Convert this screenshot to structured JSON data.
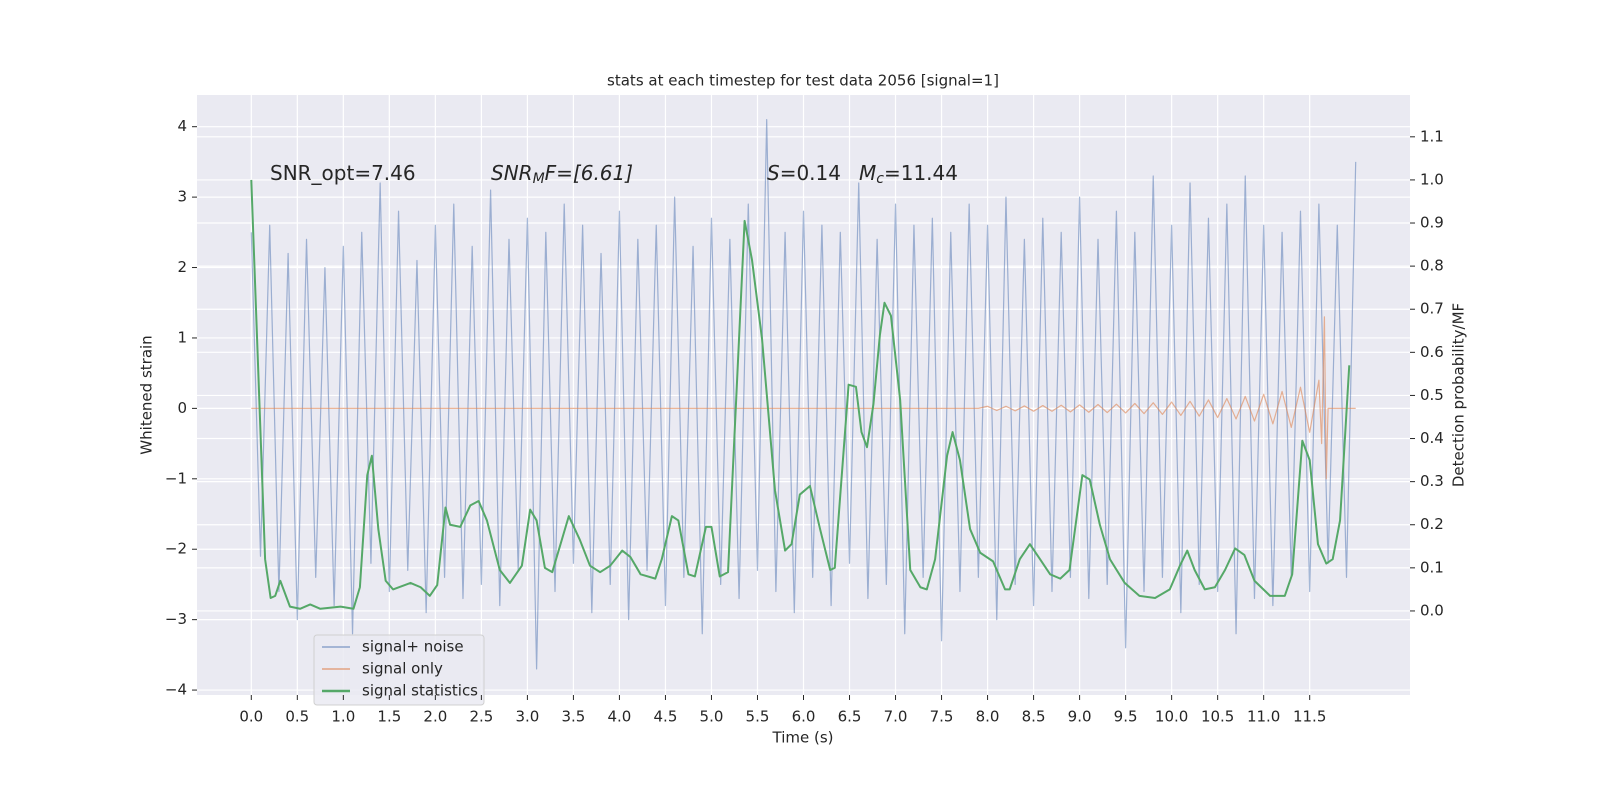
{
  "chart_data": {
    "type": "line",
    "title": "stats at each timestep for test data 2056 [signal=1]",
    "x_label": "Time (s)",
    "y_label": "Whitened strain",
    "y2_label": "Detection probability/MF",
    "annotations": [
      [
        "SNR_opt=7.46"
      ],
      [
        "SNR",
        "M",
        "F=[6.61]"
      ],
      [
        "S",
        "=0.14",
        "M",
        "c",
        "=11.44"
      ]
    ],
    "grid": true,
    "legend": "lower left",
    "xlim": [
      -0.59,
      12.59
    ],
    "ylim": [
      -4.07,
      4.45
    ],
    "y2lim": [
      -0.195,
      1.197
    ],
    "xticks": [
      {
        "value": 0,
        "label": "0.0"
      },
      0.5,
      {
        "value": 1,
        "label": "1.0"
      },
      1.5,
      {
        "value": 2,
        "label": "2.0"
      },
      2.5,
      {
        "value": 3,
        "label": "3.0"
      },
      3.5,
      {
        "value": 4,
        "label": "4.0"
      },
      4.5,
      {
        "value": 5,
        "label": "5.0"
      },
      5.5,
      {
        "value": 6,
        "label": "6.0"
      },
      6.5,
      {
        "value": 7,
        "label": "7.0"
      },
      7.5,
      {
        "value": 8,
        "label": "8.0"
      },
      8.5,
      {
        "value": 9,
        "label": "9.0"
      },
      9.5,
      {
        "value": 10,
        "label": "10.0"
      },
      10.5,
      {
        "value": 11,
        "label": "11.0"
      },
      11.5
    ],
    "yticks": [
      {
        "value": -4,
        "label": "−4"
      },
      {
        "value": -3,
        "label": "−3"
      },
      {
        "value": -2,
        "label": "−2"
      },
      {
        "value": -1,
        "label": "−1"
      },
      0,
      1,
      2,
      3,
      4
    ],
    "y2ticks": [
      {
        "value": 0,
        "label": "0.0"
      },
      0.1,
      0.2,
      0.3,
      0.4,
      0.5,
      0.6,
      0.7,
      0.8,
      0.9,
      {
        "value": 1,
        "label": "1.0"
      },
      1.1
    ],
    "series": [
      {
        "name": "signal+ noise",
        "color": "#4c72b0",
        "axis": "y",
        "x": [
          0,
          0.1,
          0.2,
          0.3,
          0.4,
          0.5,
          0.6,
          0.7,
          0.8,
          0.9,
          1,
          1.1,
          1.2,
          1.3,
          1.4,
          1.5,
          1.6,
          1.7,
          1.8,
          1.9,
          2,
          2.1,
          2.2,
          2.3,
          2.4,
          2.5,
          2.6,
          2.7,
          2.8,
          2.9,
          3,
          3.1,
          3.2,
          3.3,
          3.4,
          3.5,
          3.6,
          3.7,
          3.8,
          3.9,
          4,
          4.1,
          4.2,
          4.3,
          4.4,
          4.5,
          4.6,
          4.7,
          4.8,
          4.9,
          5,
          5.1,
          5.2,
          5.3,
          5.4,
          5.5,
          5.6,
          5.7,
          5.8,
          5.9,
          6,
          6.1,
          6.2,
          6.3,
          6.4,
          6.5,
          6.6,
          6.7,
          6.8,
          6.9,
          7,
          7.1,
          7.2,
          7.3,
          7.4,
          7.5,
          7.6,
          7.7,
          7.8,
          7.9,
          8,
          8.1,
          8.2,
          8.3,
          8.4,
          8.5,
          8.6,
          8.7,
          8.8,
          8.9,
          9,
          9.1,
          9.2,
          9.3,
          9.4,
          9.5,
          9.6,
          9.7,
          9.8,
          9.9,
          10,
          10.1,
          10.2,
          10.3,
          10.4,
          10.5,
          10.6,
          10.7,
          10.8,
          10.9,
          11,
          11.1,
          11.2,
          11.3,
          11.4,
          11.5,
          11.6,
          11.7,
          11.8,
          11.9,
          12
        ],
        "values": [
          2.5,
          -2.1,
          2.6,
          -2.6,
          2.2,
          -3.0,
          2.4,
          -2.4,
          2.0,
          -2.8,
          2.3,
          -3.2,
          2.5,
          -2.2,
          3.2,
          -2.6,
          2.8,
          -2.3,
          2.1,
          -2.9,
          2.6,
          -2.4,
          2.9,
          -2.7,
          2.3,
          -2.5,
          3.1,
          -2.8,
          2.4,
          -2.3,
          2.7,
          -3.7,
          2.5,
          -2.6,
          2.9,
          -2.2,
          2.6,
          -2.9,
          2.2,
          -2.5,
          2.8,
          -3.0,
          2.4,
          -2.3,
          2.6,
          -2.8,
          3.0,
          -2.4,
          2.3,
          -3.2,
          2.7,
          -2.5,
          2.4,
          -2.7,
          2.9,
          -2.3,
          4.1,
          -2.6,
          2.5,
          -2.9,
          2.8,
          -2.4,
          2.6,
          -2.8,
          2.5,
          -2.2,
          3.2,
          -2.7,
          2.4,
          -2.5,
          2.9,
          -3.2,
          2.6,
          -2.4,
          2.7,
          -3.3,
          2.5,
          -2.6,
          2.9,
          -2.4,
          2.6,
          -3.0,
          3.0,
          -2.5,
          2.4,
          -2.8,
          2.7,
          -2.6,
          2.5,
          -2.4,
          3.0,
          -2.7,
          2.4,
          -2.5,
          2.8,
          -3.4,
          2.5,
          -2.6,
          3.3,
          -2.4,
          2.6,
          -2.9,
          3.2,
          -2.5,
          2.7,
          -2.6,
          2.9,
          -3.2,
          3.3,
          -2.7,
          2.6,
          -2.8,
          2.5,
          -2.4,
          2.8,
          -2.6,
          2.9,
          -2.2,
          2.6,
          -2.4,
          3.5
        ]
      },
      {
        "name": "signal only",
        "color": "#dd8452",
        "axis": "y",
        "x": [
          0,
          7.9,
          8,
          8.1,
          8.2,
          8.3,
          8.4,
          8.5,
          8.6,
          8.7,
          8.8,
          8.9,
          9,
          9.1,
          9.2,
          9.3,
          9.4,
          9.5,
          9.6,
          9.7,
          9.8,
          9.9,
          10,
          10.1,
          10.2,
          10.3,
          10.4,
          10.5,
          10.6,
          10.7,
          10.8,
          10.9,
          11,
          11.1,
          11.2,
          11.3,
          11.4,
          11.5,
          11.6,
          11.63,
          11.66,
          11.68,
          11.7,
          12
        ],
        "values": [
          0,
          0,
          0.03,
          -0.03,
          0.03,
          -0.035,
          0.035,
          -0.04,
          0.04,
          -0.04,
          0.045,
          -0.05,
          0.05,
          -0.055,
          0.055,
          -0.06,
          0.06,
          -0.065,
          0.07,
          -0.075,
          0.08,
          -0.085,
          0.09,
          -0.1,
          0.1,
          -0.11,
          0.12,
          -0.13,
          0.14,
          -0.15,
          0.17,
          -0.18,
          0.2,
          -0.22,
          0.24,
          -0.27,
          0.3,
          -0.34,
          0.4,
          -0.5,
          1.3,
          -1.0,
          0,
          0
        ]
      },
      {
        "name": "signal statistics",
        "color": "#55a868",
        "axis": "y2",
        "x": [
          0,
          0.15,
          0.21,
          0.26,
          0.315,
          0.42,
          0.53,
          0.64,
          0.75,
          0.97,
          1.11,
          1.18,
          1.26,
          1.31,
          1.38,
          1.46,
          1.54,
          1.73,
          1.84,
          1.94,
          2.02,
          2.11,
          2.16,
          2.27,
          2.38,
          2.47,
          2.56,
          2.7,
          2.81,
          2.94,
          3.03,
          3.1,
          3.19,
          3.27,
          3.45,
          3.57,
          3.68,
          3.79,
          3.9,
          4.03,
          4.12,
          4.23,
          4.39,
          4.46,
          4.57,
          4.64,
          4.75,
          4.82,
          4.94,
          5,
          5.09,
          5.18,
          5.36,
          5.44,
          5.55,
          5.69,
          5.8,
          5.87,
          5.96,
          6.07,
          6.18,
          6.29,
          6.34,
          6.49,
          6.57,
          6.63,
          6.69,
          6.76,
          6.83,
          6.88,
          6.95,
          7.05,
          7.16,
          7.27,
          7.34,
          7.43,
          7.56,
          7.62,
          7.7,
          7.81,
          7.92,
          8.06,
          8.19,
          8.24,
          8.35,
          8.46,
          8.57,
          8.68,
          8.79,
          8.89,
          9.03,
          9.11,
          9.22,
          9.33,
          9.49,
          9.65,
          9.82,
          9.98,
          10.09,
          10.17,
          10.25,
          10.36,
          10.47,
          10.58,
          10.69,
          10.79,
          10.9,
          11.07,
          11.23,
          11.31,
          11.42,
          11.5,
          11.59,
          11.68,
          11.75,
          11.83,
          11.93
        ],
        "values": [
          1.0,
          0.12,
          0.03,
          0.035,
          0.07,
          0.01,
          0.005,
          0.015,
          0.005,
          0.01,
          0.005,
          0.055,
          0.315,
          0.36,
          0.19,
          0.07,
          0.05,
          0.065,
          0.055,
          0.035,
          0.06,
          0.24,
          0.2,
          0.195,
          0.245,
          0.255,
          0.21,
          0.095,
          0.065,
          0.105,
          0.235,
          0.21,
          0.1,
          0.09,
          0.22,
          0.165,
          0.105,
          0.09,
          0.105,
          0.14,
          0.125,
          0.085,
          0.075,
          0.12,
          0.22,
          0.21,
          0.085,
          0.08,
          0.195,
          0.195,
          0.08,
          0.09,
          0.905,
          0.815,
          0.63,
          0.28,
          0.14,
          0.155,
          0.27,
          0.29,
          0.19,
          0.095,
          0.1,
          0.525,
          0.52,
          0.415,
          0.38,
          0.48,
          0.64,
          0.715,
          0.685,
          0.49,
          0.095,
          0.055,
          0.05,
          0.12,
          0.36,
          0.415,
          0.35,
          0.19,
          0.135,
          0.115,
          0.05,
          0.05,
          0.12,
          0.155,
          0.12,
          0.085,
          0.075,
          0.095,
          0.315,
          0.305,
          0.2,
          0.12,
          0.065,
          0.035,
          0.03,
          0.05,
          0.105,
          0.14,
          0.095,
          0.05,
          0.055,
          0.095,
          0.145,
          0.13,
          0.07,
          0.035,
          0.035,
          0.085,
          0.395,
          0.35,
          0.155,
          0.11,
          0.12,
          0.21,
          0.57
        ]
      }
    ]
  }
}
